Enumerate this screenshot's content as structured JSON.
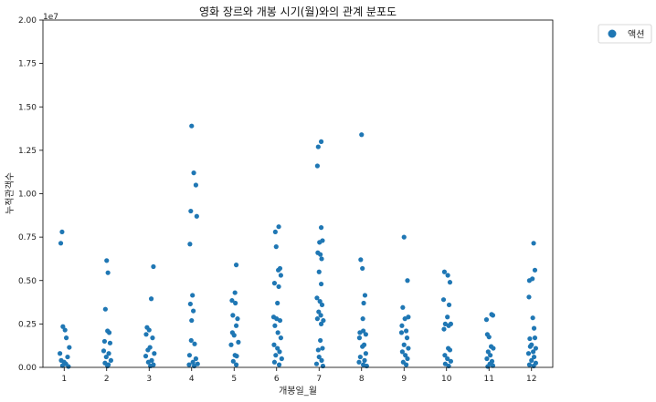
{
  "chart_data": {
    "type": "scatter",
    "title": "영화 장르와 개봉 시기(월)와의 관계 분포도",
    "xlabel": "개봉일_월",
    "ylabel": "누적관객수",
    "offset_text": "1e7",
    "categories": [
      "1",
      "2",
      "3",
      "4",
      "5",
      "6",
      "7",
      "8",
      "9",
      "10",
      "11",
      "12"
    ],
    "xlim": [
      0.5,
      12.5
    ],
    "ylim": [
      0,
      20000000
    ],
    "y_ticks": [
      0,
      2500000,
      5000000,
      7500000,
      10000000,
      12500000,
      15000000,
      17500000,
      20000000
    ],
    "y_tick_labels": [
      "0.00",
      "0.25",
      "0.50",
      "0.75",
      "1.00",
      "1.25",
      "1.50",
      "1.75",
      "2.00"
    ],
    "grid": false,
    "legend_position": "outside-top-right",
    "color": "#1f77b4",
    "series": [
      {
        "name": "액션",
        "points": [
          [
            0.95,
            7800000
          ],
          [
            0.92,
            7150000
          ],
          [
            0.97,
            2350000
          ],
          [
            1.02,
            2150000
          ],
          [
            1.05,
            1700000
          ],
          [
            0.9,
            800000
          ],
          [
            1.08,
            600000
          ],
          [
            1.12,
            1150000
          ],
          [
            0.93,
            400000
          ],
          [
            1.0,
            300000
          ],
          [
            1.04,
            200000
          ],
          [
            0.96,
            100000
          ],
          [
            1.1,
            50000
          ],
          [
            2.0,
            6150000
          ],
          [
            2.03,
            5450000
          ],
          [
            1.97,
            3350000
          ],
          [
            2.02,
            2100000
          ],
          [
            2.06,
            2000000
          ],
          [
            1.95,
            1500000
          ],
          [
            2.08,
            1400000
          ],
          [
            1.93,
            950000
          ],
          [
            2.05,
            800000
          ],
          [
            1.99,
            600000
          ],
          [
            2.1,
            400000
          ],
          [
            1.96,
            250000
          ],
          [
            2.04,
            150000
          ],
          [
            2.02,
            80000
          ],
          [
            3.1,
            5800000
          ],
          [
            3.05,
            3950000
          ],
          [
            2.95,
            2300000
          ],
          [
            3.0,
            2150000
          ],
          [
            2.93,
            1900000
          ],
          [
            3.08,
            1700000
          ],
          [
            3.02,
            1150000
          ],
          [
            2.97,
            1000000
          ],
          [
            3.12,
            800000
          ],
          [
            2.92,
            650000
          ],
          [
            3.06,
            400000
          ],
          [
            2.98,
            300000
          ],
          [
            3.1,
            150000
          ],
          [
            3.03,
            80000
          ],
          [
            4.0,
            13900000
          ],
          [
            4.05,
            11200000
          ],
          [
            4.1,
            10500000
          ],
          [
            3.98,
            9000000
          ],
          [
            4.12,
            8700000
          ],
          [
            3.96,
            7100000
          ],
          [
            4.02,
            4150000
          ],
          [
            3.97,
            3650000
          ],
          [
            4.04,
            3250000
          ],
          [
            4.0,
            2700000
          ],
          [
            3.99,
            1550000
          ],
          [
            4.07,
            1350000
          ],
          [
            3.95,
            700000
          ],
          [
            4.1,
            500000
          ],
          [
            4.03,
            300000
          ],
          [
            4.14,
            200000
          ],
          [
            3.94,
            150000
          ],
          [
            4.06,
            80000
          ],
          [
            5.05,
            5900000
          ],
          [
            5.02,
            4300000
          ],
          [
            4.95,
            3850000
          ],
          [
            5.03,
            3700000
          ],
          [
            4.97,
            3000000
          ],
          [
            5.08,
            2800000
          ],
          [
            5.05,
            2400000
          ],
          [
            4.96,
            2000000
          ],
          [
            5.0,
            1850000
          ],
          [
            5.1,
            1450000
          ],
          [
            4.93,
            1300000
          ],
          [
            5.02,
            700000
          ],
          [
            5.06,
            650000
          ],
          [
            4.98,
            350000
          ],
          [
            5.05,
            150000
          ],
          [
            6.05,
            8100000
          ],
          [
            5.97,
            7800000
          ],
          [
            5.99,
            6950000
          ],
          [
            6.08,
            5700000
          ],
          [
            6.04,
            5600000
          ],
          [
            6.1,
            5300000
          ],
          [
            5.95,
            4850000
          ],
          [
            6.05,
            4650000
          ],
          [
            6.02,
            3700000
          ],
          [
            5.93,
            2900000
          ],
          [
            6.0,
            2800000
          ],
          [
            6.08,
            2700000
          ],
          [
            5.96,
            2400000
          ],
          [
            6.03,
            2000000
          ],
          [
            6.1,
            1700000
          ],
          [
            5.94,
            1300000
          ],
          [
            6.02,
            1100000
          ],
          [
            6.07,
            900000
          ],
          [
            5.98,
            700000
          ],
          [
            6.12,
            500000
          ],
          [
            5.95,
            300000
          ],
          [
            6.06,
            150000
          ],
          [
            7.05,
            13000000
          ],
          [
            6.98,
            12700000
          ],
          [
            6.96,
            11600000
          ],
          [
            7.05,
            8050000
          ],
          [
            7.01,
            7200000
          ],
          [
            7.08,
            7300000
          ],
          [
            6.97,
            6600000
          ],
          [
            7.03,
            6500000
          ],
          [
            7.06,
            6250000
          ],
          [
            7.0,
            5500000
          ],
          [
            7.05,
            4800000
          ],
          [
            6.95,
            4000000
          ],
          [
            7.02,
            3800000
          ],
          [
            7.07,
            3600000
          ],
          [
            6.99,
            3200000
          ],
          [
            7.04,
            3000000
          ],
          [
            7.1,
            2700000
          ],
          [
            6.96,
            2800000
          ],
          [
            7.05,
            2500000
          ],
          [
            7.03,
            1550000
          ],
          [
            6.98,
            1000000
          ],
          [
            7.08,
            1100000
          ],
          [
            7.0,
            600000
          ],
          [
            7.06,
            400000
          ],
          [
            6.94,
            200000
          ],
          [
            7.09,
            80000
          ],
          [
            8.0,
            13400000
          ],
          [
            7.98,
            6200000
          ],
          [
            8.02,
            5700000
          ],
          [
            8.08,
            4150000
          ],
          [
            8.05,
            3700000
          ],
          [
            8.03,
            2800000
          ],
          [
            7.96,
            2000000
          ],
          [
            8.04,
            2100000
          ],
          [
            8.1,
            1900000
          ],
          [
            7.95,
            1700000
          ],
          [
            8.06,
            1300000
          ],
          [
            8.02,
            1200000
          ],
          [
            8.1,
            800000
          ],
          [
            7.97,
            600000
          ],
          [
            8.07,
            400000
          ],
          [
            7.94,
            300000
          ],
          [
            8.04,
            150000
          ],
          [
            8.12,
            80000
          ],
          [
            9.0,
            7500000
          ],
          [
            9.08,
            5000000
          ],
          [
            8.97,
            3450000
          ],
          [
            9.1,
            2900000
          ],
          [
            9.02,
            2800000
          ],
          [
            8.95,
            2400000
          ],
          [
            9.05,
            2100000
          ],
          [
            8.94,
            2000000
          ],
          [
            9.07,
            1700000
          ],
          [
            9.0,
            1300000
          ],
          [
            9.1,
            1100000
          ],
          [
            8.96,
            900000
          ],
          [
            9.03,
            700000
          ],
          [
            9.08,
            500000
          ],
          [
            8.98,
            300000
          ],
          [
            9.05,
            150000
          ],
          [
            9.95,
            5500000
          ],
          [
            10.03,
            5300000
          ],
          [
            10.08,
            4900000
          ],
          [
            9.93,
            3900000
          ],
          [
            10.06,
            3600000
          ],
          [
            10.02,
            2900000
          ],
          [
            9.97,
            2500000
          ],
          [
            10.05,
            2400000
          ],
          [
            10.1,
            2500000
          ],
          [
            9.94,
            2200000
          ],
          [
            10.04,
            1100000
          ],
          [
            10.08,
            1000000
          ],
          [
            9.96,
            700000
          ],
          [
            10.02,
            500000
          ],
          [
            10.1,
            350000
          ],
          [
            9.97,
            200000
          ],
          [
            10.05,
            80000
          ],
          [
            10.94,
            2750000
          ],
          [
            11.06,
            3050000
          ],
          [
            11.09,
            3000000
          ],
          [
            10.96,
            1900000
          ],
          [
            11.0,
            1750000
          ],
          [
            11.05,
            1200000
          ],
          [
            11.1,
            1100000
          ],
          [
            10.98,
            900000
          ],
          [
            11.03,
            700000
          ],
          [
            10.95,
            500000
          ],
          [
            11.07,
            350000
          ],
          [
            11.02,
            200000
          ],
          [
            11.09,
            100000
          ],
          [
            10.97,
            50000
          ],
          [
            12.05,
            7150000
          ],
          [
            12.08,
            5600000
          ],
          [
            12.02,
            5100000
          ],
          [
            11.95,
            5000000
          ],
          [
            11.94,
            4050000
          ],
          [
            12.03,
            2850000
          ],
          [
            12.06,
            2250000
          ],
          [
            11.96,
            1650000
          ],
          [
            12.08,
            1700000
          ],
          [
            12.0,
            1300000
          ],
          [
            11.97,
            1200000
          ],
          [
            12.1,
            1100000
          ],
          [
            12.04,
            900000
          ],
          [
            11.93,
            800000
          ],
          [
            12.06,
            600000
          ],
          [
            12.0,
            400000
          ],
          [
            12.1,
            250000
          ],
          [
            11.95,
            150000
          ],
          [
            12.05,
            80000
          ]
        ]
      }
    ]
  }
}
